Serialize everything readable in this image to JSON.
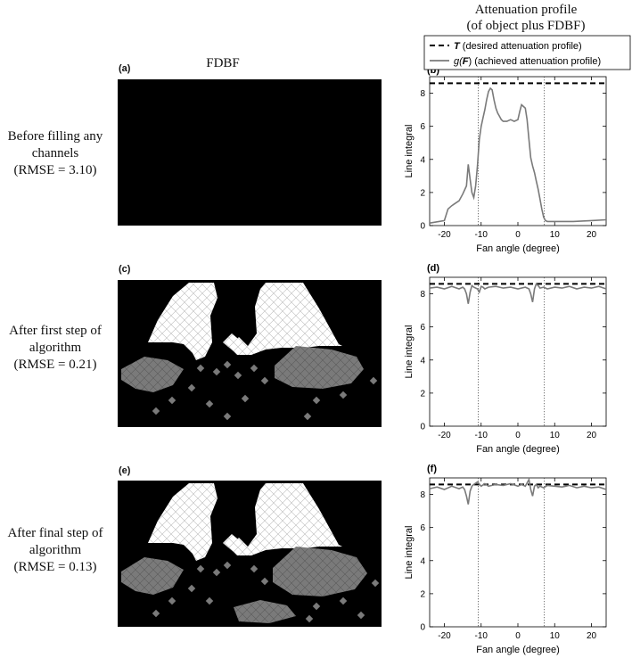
{
  "headers": {
    "fdbf": "FDBF",
    "profile_line1": "Attenuation profile",
    "profile_line2": "(of object plus FDBF)"
  },
  "legend": {
    "target_symbol": "T",
    "target_text": "(desired attenuation profile)",
    "achieved_symbol_prefix": "g(",
    "achieved_symbol_var": "F",
    "achieved_symbol_suffix": ")",
    "achieved_text": "(achieved attenuation profile)"
  },
  "rows": [
    {
      "label_lines": [
        "Before filling any",
        "channels",
        "(RMSE = 3.10)"
      ],
      "image_letter": "(a)",
      "plot_letter": "(b)"
    },
    {
      "label_lines": [
        "After first step of",
        "algorithm",
        "(RMSE = 0.21)"
      ],
      "image_letter": "(c)",
      "plot_letter": "(d)"
    },
    {
      "label_lines": [
        "After final step of",
        "algorithm",
        "(RMSE = 0.13)"
      ],
      "image_letter": "(e)",
      "plot_letter": "(f)"
    }
  ],
  "colors": {
    "target": "#000000",
    "achieved": "#7a7a7a",
    "fdbf_bg": "#000000",
    "fdbf_fill": "#ffffff",
    "fdbf_partial": "#7a7a7a"
  },
  "chart_data": [
    {
      "type": "line",
      "panel": "(b)",
      "xlabel": "Fan angle (degree)",
      "ylabel": "Line integral",
      "xlim": [
        -24,
        24
      ],
      "ylim": [
        0,
        9
      ],
      "xticks": [
        -20,
        -10,
        0,
        10,
        20
      ],
      "yticks": [
        0,
        2,
        4,
        6,
        8
      ],
      "vlines": [
        -10.8,
        7.2
      ],
      "series": [
        {
          "name": "T",
          "style": "dashed",
          "x": [
            -24,
            24
          ],
          "y": [
            8.6,
            8.6
          ]
        },
        {
          "name": "g(F)",
          "style": "solid",
          "x": [
            -24,
            -20,
            -19,
            -18,
            -16,
            -15,
            -14,
            -13.5,
            -13,
            -12.5,
            -12,
            -11.5,
            -11,
            -10.5,
            -10,
            -9.5,
            -9,
            -8.5,
            -8,
            -7.5,
            -7,
            -6.5,
            -6,
            -5.5,
            -5,
            -4.5,
            -4,
            -3,
            -2,
            -1,
            0,
            0.5,
            1,
            1.5,
            2,
            2.5,
            3,
            3.5,
            4,
            4.5,
            5,
            5.5,
            6,
            6.5,
            7,
            7.5,
            8,
            10,
            15,
            20,
            24
          ],
          "y": [
            0.15,
            0.3,
            1.0,
            1.2,
            1.5,
            1.9,
            2.4,
            3.7,
            2.8,
            2.0,
            1.7,
            2.4,
            3.6,
            5.2,
            6.0,
            6.5,
            7.0,
            7.6,
            8.1,
            8.3,
            8.2,
            7.6,
            7.1,
            6.8,
            6.6,
            6.4,
            6.3,
            6.3,
            6.4,
            6.3,
            6.4,
            6.9,
            7.3,
            7.2,
            7.1,
            6.4,
            5.2,
            4.1,
            3.6,
            3.2,
            2.7,
            2.2,
            1.6,
            1.0,
            0.5,
            0.3,
            0.25,
            0.25,
            0.25,
            0.3,
            0.35
          ]
        }
      ]
    },
    {
      "type": "line",
      "panel": "(d)",
      "xlabel": "Fan angle (degree)",
      "ylabel": "Line integral",
      "xlim": [
        -24,
        24
      ],
      "ylim": [
        0,
        9
      ],
      "xticks": [
        -20,
        -10,
        0,
        10,
        20
      ],
      "yticks": [
        0,
        2,
        4,
        6,
        8
      ],
      "vlines": [
        -10.8,
        7.2
      ],
      "series": [
        {
          "name": "T",
          "style": "dashed",
          "x": [
            -24,
            24
          ],
          "y": [
            8.6,
            8.6
          ]
        },
        {
          "name": "g(F)",
          "style": "solid",
          "x": [
            -24,
            -22,
            -20,
            -18,
            -16,
            -15,
            -14.5,
            -14,
            -13.5,
            -13,
            -12.5,
            -12,
            -11,
            -10.5,
            -10,
            -9.5,
            -9,
            -8,
            -6,
            -4,
            -2,
            0,
            2,
            3,
            3.5,
            4,
            4.5,
            5,
            5.5,
            6,
            7,
            8,
            10,
            12,
            14,
            16,
            18,
            20,
            22,
            24
          ],
          "y": [
            8.35,
            8.4,
            8.3,
            8.45,
            8.3,
            8.4,
            8.3,
            8.0,
            7.4,
            8.1,
            8.5,
            8.4,
            8.3,
            8.1,
            8.45,
            8.4,
            8.3,
            8.4,
            8.45,
            8.35,
            8.4,
            8.3,
            8.4,
            8.3,
            8.0,
            7.5,
            8.3,
            8.6,
            8.5,
            8.35,
            8.4,
            8.3,
            8.4,
            8.35,
            8.45,
            8.3,
            8.4,
            8.35,
            8.45,
            8.3
          ]
        }
      ]
    },
    {
      "type": "line",
      "panel": "(f)",
      "xlabel": "Fan angle (degree)",
      "ylabel": "Line integral",
      "xlim": [
        -24,
        24
      ],
      "ylim": [
        0,
        9
      ],
      "xticks": [
        -20,
        -10,
        0,
        10,
        20
      ],
      "yticks": [
        0,
        2,
        4,
        6,
        8
      ],
      "vlines": [
        -10.8,
        7.2
      ],
      "series": [
        {
          "name": "T",
          "style": "dashed",
          "x": [
            -24,
            24
          ],
          "y": [
            8.6,
            8.6
          ]
        },
        {
          "name": "g(F)",
          "style": "solid",
          "x": [
            -24,
            -22,
            -20,
            -18,
            -16,
            -15,
            -14.5,
            -14,
            -13.5,
            -13,
            -12.5,
            -12,
            -11,
            -10,
            -9,
            -8,
            -6,
            -4,
            -2,
            0,
            1,
            2,
            3,
            3.5,
            4,
            4.5,
            5,
            5.5,
            6,
            7,
            8,
            10,
            12,
            14,
            16,
            18,
            20,
            22,
            24
          ],
          "y": [
            8.35,
            8.45,
            8.3,
            8.5,
            8.35,
            8.45,
            8.3,
            7.9,
            7.4,
            8.2,
            8.5,
            8.6,
            8.75,
            8.5,
            8.65,
            8.5,
            8.6,
            8.55,
            8.65,
            8.5,
            8.6,
            8.5,
            8.9,
            8.3,
            7.9,
            8.5,
            8.6,
            8.4,
            8.5,
            8.4,
            8.55,
            8.5,
            8.45,
            8.55,
            8.4,
            8.5,
            8.4,
            8.45,
            8.3
          ]
        }
      ]
    }
  ]
}
